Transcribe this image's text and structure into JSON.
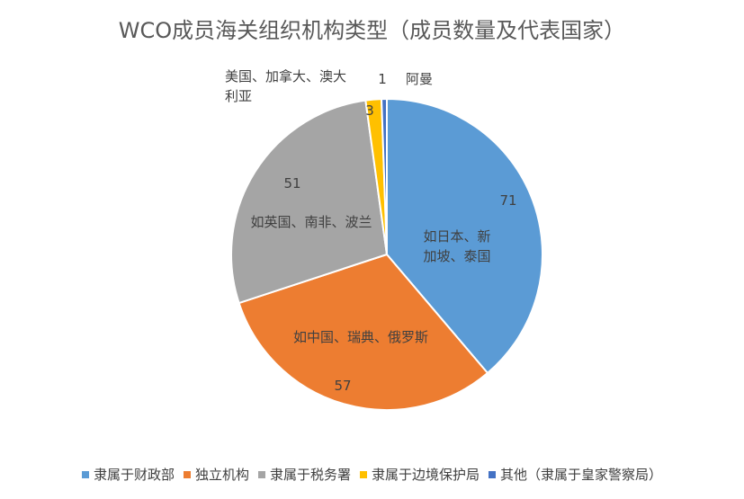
{
  "chart_data": {
    "type": "pie",
    "title": "WCO成员海关组织机构类型（成员数量及代表国家）",
    "slices": [
      {
        "name": "隶属于财政部",
        "value": 71,
        "color": "#5B9BD5",
        "examples_line1": "如日本、新",
        "examples_line2": "加坡、泰国"
      },
      {
        "name": "独立机构",
        "value": 57,
        "color": "#ED7D31",
        "examples_line1": "如中国、瑞典、俄罗斯",
        "examples_line2": ""
      },
      {
        "name": "隶属于税务署",
        "value": 51,
        "color": "#A5A5A5",
        "examples_line1": "如英国、南非、波兰",
        "examples_line2": ""
      },
      {
        "name": "隶属于边境保护局",
        "value": 3,
        "color": "#FFC000",
        "examples_line1": "美国、加拿大、澳大",
        "examples_line2": "利亚"
      },
      {
        "name": "其他（隶属于皇家警察局）",
        "value": 1,
        "color": "#4472C4",
        "examples_line1": "阿曼",
        "examples_line2": ""
      }
    ],
    "legend_position": "bottom"
  }
}
